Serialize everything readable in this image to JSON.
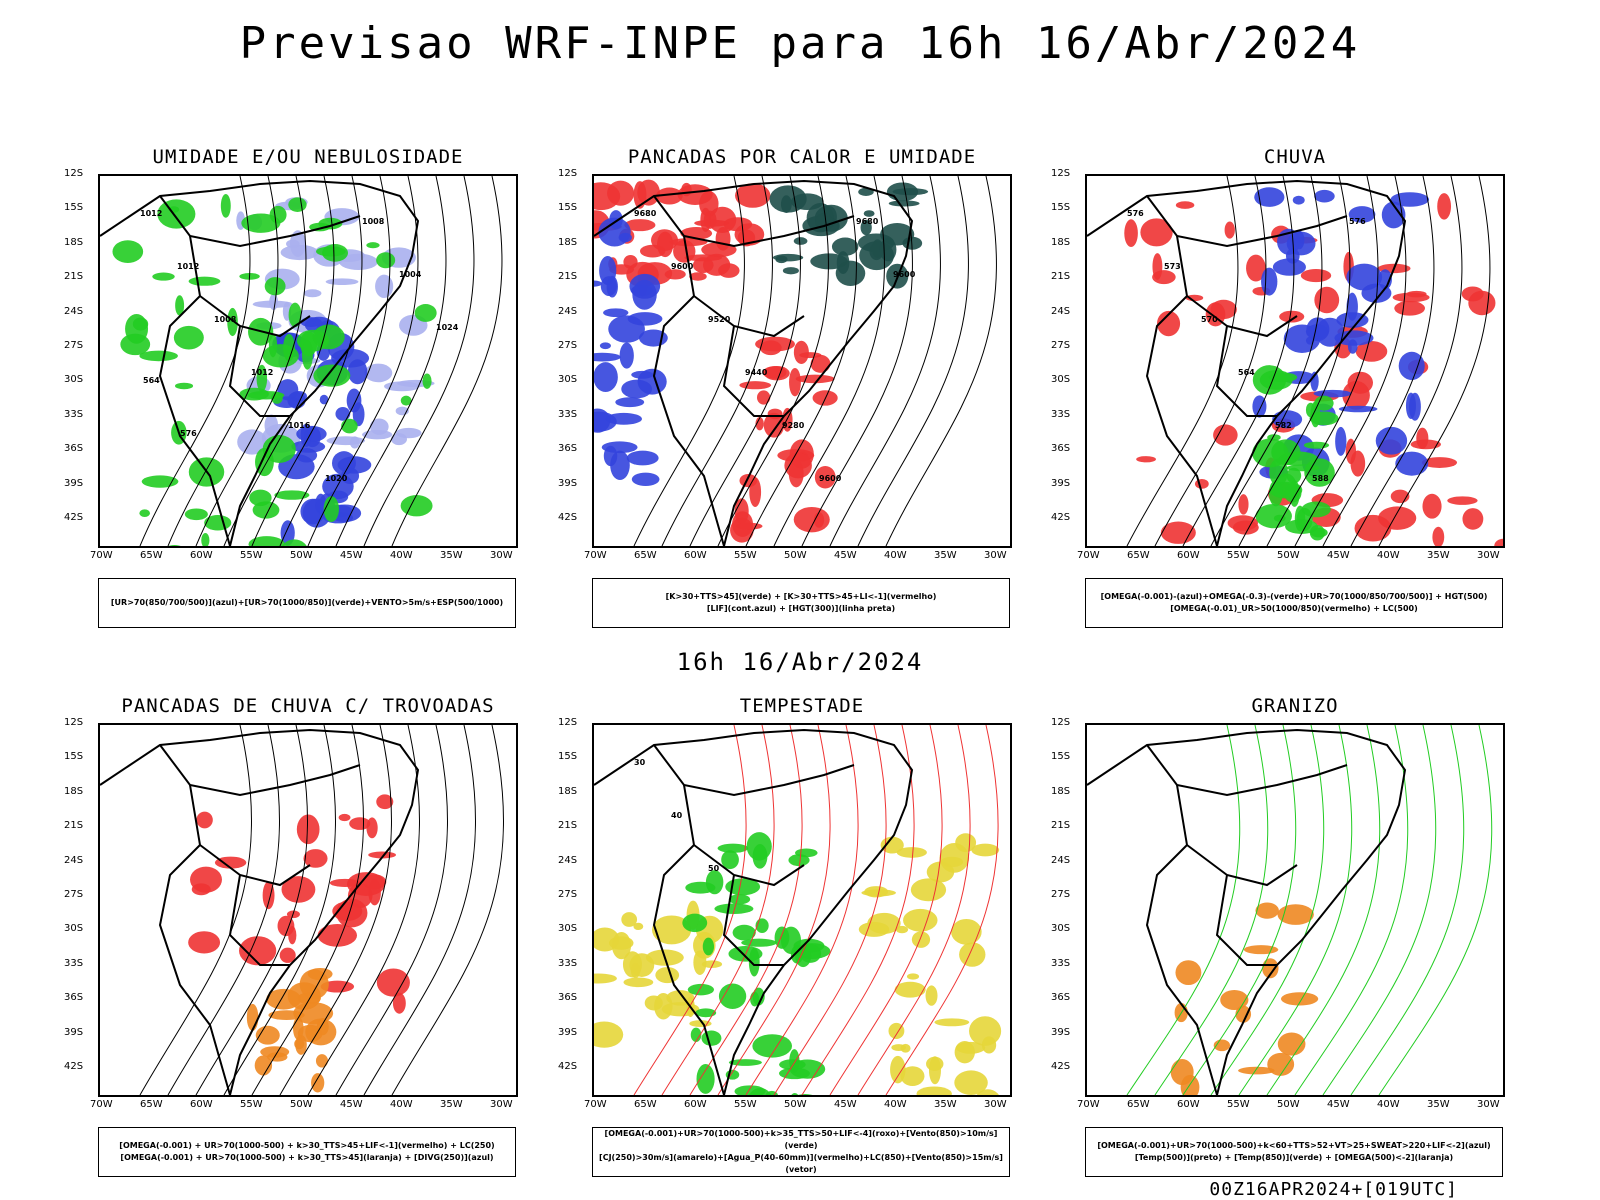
{
  "header": {
    "title": "Previsao WRF-INPE  para 16h 16/Abr/2024"
  },
  "mid_title": "16h 16/Abr/2024",
  "footer": "00Z16APR2024+[019UTC]",
  "axes": {
    "lat_labels": [
      "12S",
      "15S",
      "18S",
      "21S",
      "24S",
      "27S",
      "30S",
      "33S",
      "36S",
      "39S",
      "42S"
    ],
    "lon_labels": [
      "70W",
      "65W",
      "60W",
      "55W",
      "50W",
      "45W",
      "40W",
      "35W",
      "30W"
    ]
  },
  "panels": [
    {
      "id": "umidade",
      "title": "UMIDADE E/OU NEBULOSIDADE",
      "legend": [
        "[UR>70(850/700/500)](azul)+[UR>70(1000/850)](verde)+VENTO>5m/s+ESP(500/1000)"
      ],
      "contour_labels": [
        "1012",
        "1012",
        "1008",
        "1012",
        "1016",
        "1020",
        "1008",
        "1004",
        "1024",
        "564",
        "576"
      ]
    },
    {
      "id": "pancadas_calor",
      "title": "PANCADAS POR CALOR E UMIDADE",
      "legend": [
        "[K>30+TTS>45](verde) + [K>30+TTS>45+LI<-1](vermelho)",
        "[LIF](cont.azul) + [HGT(300)](linha preta)"
      ],
      "contour_labels": [
        "9680",
        "9600",
        "9520",
        "9440",
        "9280",
        "9600",
        "9680",
        "9600"
      ]
    },
    {
      "id": "chuva",
      "title": "CHUVA",
      "legend": [
        "[OMEGA(-0.001)-(azul)+OMEGA(-0.3)-(verde)+UR>70(1000/850/700/500)] + HGT(500)",
        "[OMEGA(-0.01)_UR>50(1000/850)(vermelho) + LC(500)"
      ],
      "contour_labels": [
        "576",
        "573",
        "570",
        "564",
        "582",
        "588",
        "576"
      ]
    },
    {
      "id": "trovoadas",
      "title": "PANCADAS DE CHUVA C/ TROVOADAS",
      "legend": [
        "[OMEGA(-0.001) + UR>70(1000-500) + k>30_TTS>45+LIF<-1](vermelho) + LC(250)",
        "[OMEGA(-0.001) + UR>70(1000-500) + k>30_TTS>45](laranja) + [DIVG(250)](azul)"
      ],
      "contour_labels": []
    },
    {
      "id": "tempestade",
      "title": "TEMPESTADE",
      "legend": [
        "[OMEGA(-0.001)+UR>70(1000-500)+k>35_TTS>50+LIF<-4](roxo)+[Vento(850)>10m/s](verde)",
        "[CJ(250)>30m/s](amarelo)+[Agua_P(40-60mm)](vermelho)+LC(850)+[Vento(850)>15m/s](vetor)"
      ],
      "contour_labels": [
        "30",
        "40",
        "50"
      ]
    },
    {
      "id": "granizo",
      "title": "GRANIZO",
      "legend": [
        "[OMEGA(-0.001)+UR>70(1000-500)+k<60+TTS>52+VT>25+SWEAT>220+LIF<-2](azul)",
        "[Temp(500)](preto) + [Temp(850)](verde) + [OMEGA(500)<-2](laranja)"
      ],
      "contour_labels": []
    }
  ],
  "colors": {
    "blue": "#3344dd",
    "lightblue": "#aab0ee",
    "green": "#22cc22",
    "red": "#ee3333",
    "darkteal": "#1f4f4a",
    "yellow": "#e6d63a",
    "orange": "#ee8822",
    "black": "#000000"
  }
}
